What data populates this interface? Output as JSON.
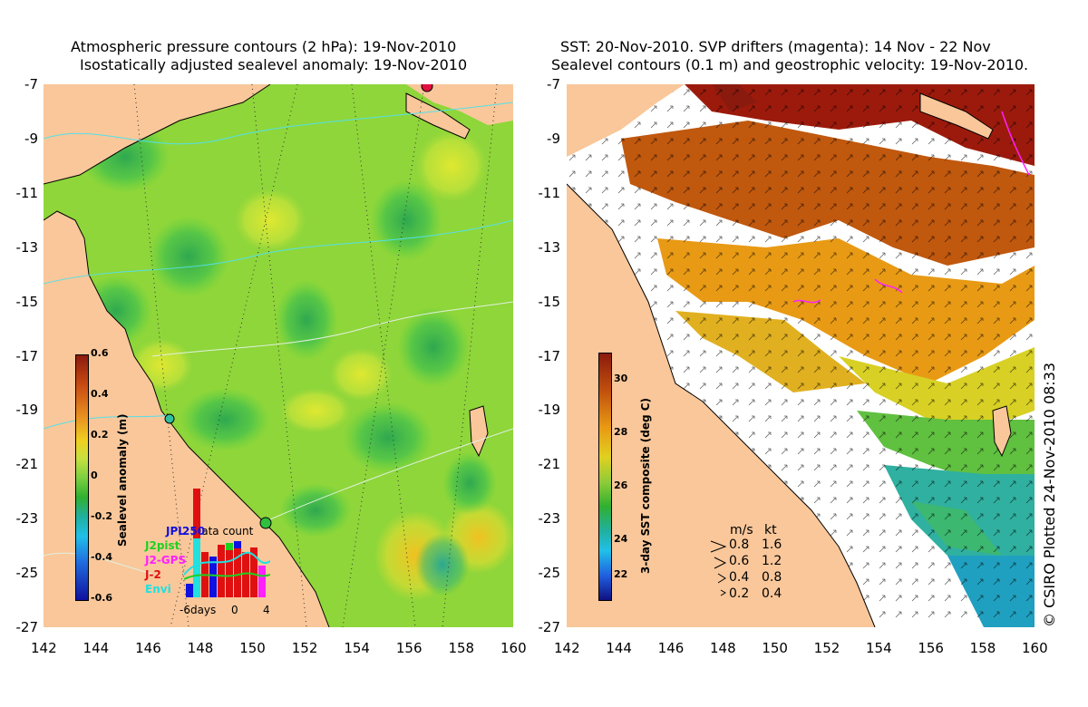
{
  "left_panel": {
    "title_line1": "Atmospheric pressure contours (2 hPa): 19-Nov-2010",
    "title_line2": "Isostatically adjusted sealevel anomaly: 19-Nov-2010",
    "colorbar": {
      "label": "Sealevel anomaly (m)",
      "ticks": [
        "0.6",
        "0.4",
        "0.2",
        "0",
        "-0.2",
        "-0.4",
        "-0.6"
      ]
    },
    "inset": {
      "title": "Data count",
      "count": "250",
      "sources": [
        {
          "name": "JPL",
          "color": "#1010e0"
        },
        {
          "name": "J2pist",
          "color": "#20d020"
        },
        {
          "name": "J2-GPS",
          "color": "#ff20ff"
        },
        {
          "name": "J-2",
          "color": "#e01010"
        },
        {
          "name": "Envi",
          "color": "#20e0e0"
        }
      ],
      "xticks": [
        "-6days",
        "0",
        "4"
      ]
    }
  },
  "right_panel": {
    "title_line1": "SST: 20-Nov-2010. SVP drifters (magenta): 14 Nov - 22 Nov",
    "title_line2": "Sealevel contours (0.1 m) and geostrophic velocity: 19-Nov-2010.",
    "colorbar": {
      "label": "3-day SST composite (deg C)",
      "ticks": [
        "30",
        "28",
        "26",
        "24",
        "22"
      ]
    },
    "vector_legend": {
      "header_ms": "m/s",
      "header_kt": "kt",
      "rows": [
        {
          "ms": "0.8",
          "kt": "1.6"
        },
        {
          "ms": "0.6",
          "kt": "1.2"
        },
        {
          "ms": "0.4",
          "kt": "0.8"
        },
        {
          "ms": "0.2",
          "kt": "0.4"
        }
      ]
    }
  },
  "axes": {
    "lat_ticks": [
      "-7",
      "-9",
      "-11",
      "-13",
      "-15",
      "-17",
      "-19",
      "-21",
      "-23",
      "-25",
      "-27"
    ],
    "lon_ticks": [
      "142",
      "144",
      "146",
      "148",
      "150",
      "152",
      "154",
      "156",
      "158",
      "160"
    ]
  },
  "credit": "© CSIRO Plotted 24-Nov-2010 08:33",
  "colors": {
    "land": "#f9c79a",
    "white": "#ffffff"
  }
}
